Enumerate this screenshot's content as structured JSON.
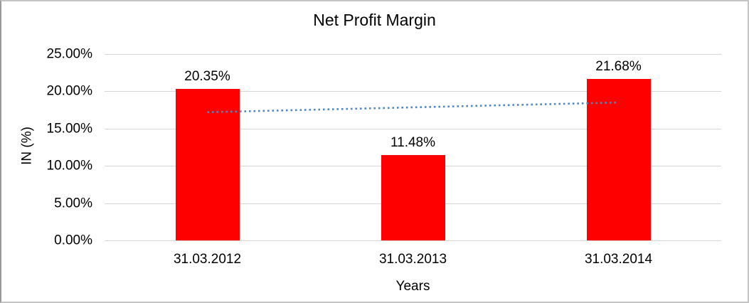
{
  "window": {
    "background_color": "#ffffff",
    "border_color": "#c4c4c4"
  },
  "chart_data": {
    "type": "bar",
    "title": "Net Profit Margin",
    "xlabel": "Years",
    "ylabel": "IN (%)",
    "categories": [
      "31.03.2012",
      "31.03.2013",
      "31.03.2014"
    ],
    "values": [
      20.35,
      11.48,
      21.68
    ],
    "value_labels": [
      "20.35%",
      "11.48%",
      "21.68%"
    ],
    "y_ticks": [
      "0.00%",
      "5.00%",
      "10.00%",
      "15.00%",
      "20.00%",
      "25.00%"
    ],
    "ylim": [
      0,
      25
    ],
    "grid": true,
    "legend": "none",
    "bar_color": "#ff0000",
    "gridline_color": "#d6d6d6",
    "trendline": {
      "type": "linear",
      "style": "dotted",
      "color": "#4f86c6",
      "start_value": 17.2,
      "end_value": 18.5
    }
  }
}
